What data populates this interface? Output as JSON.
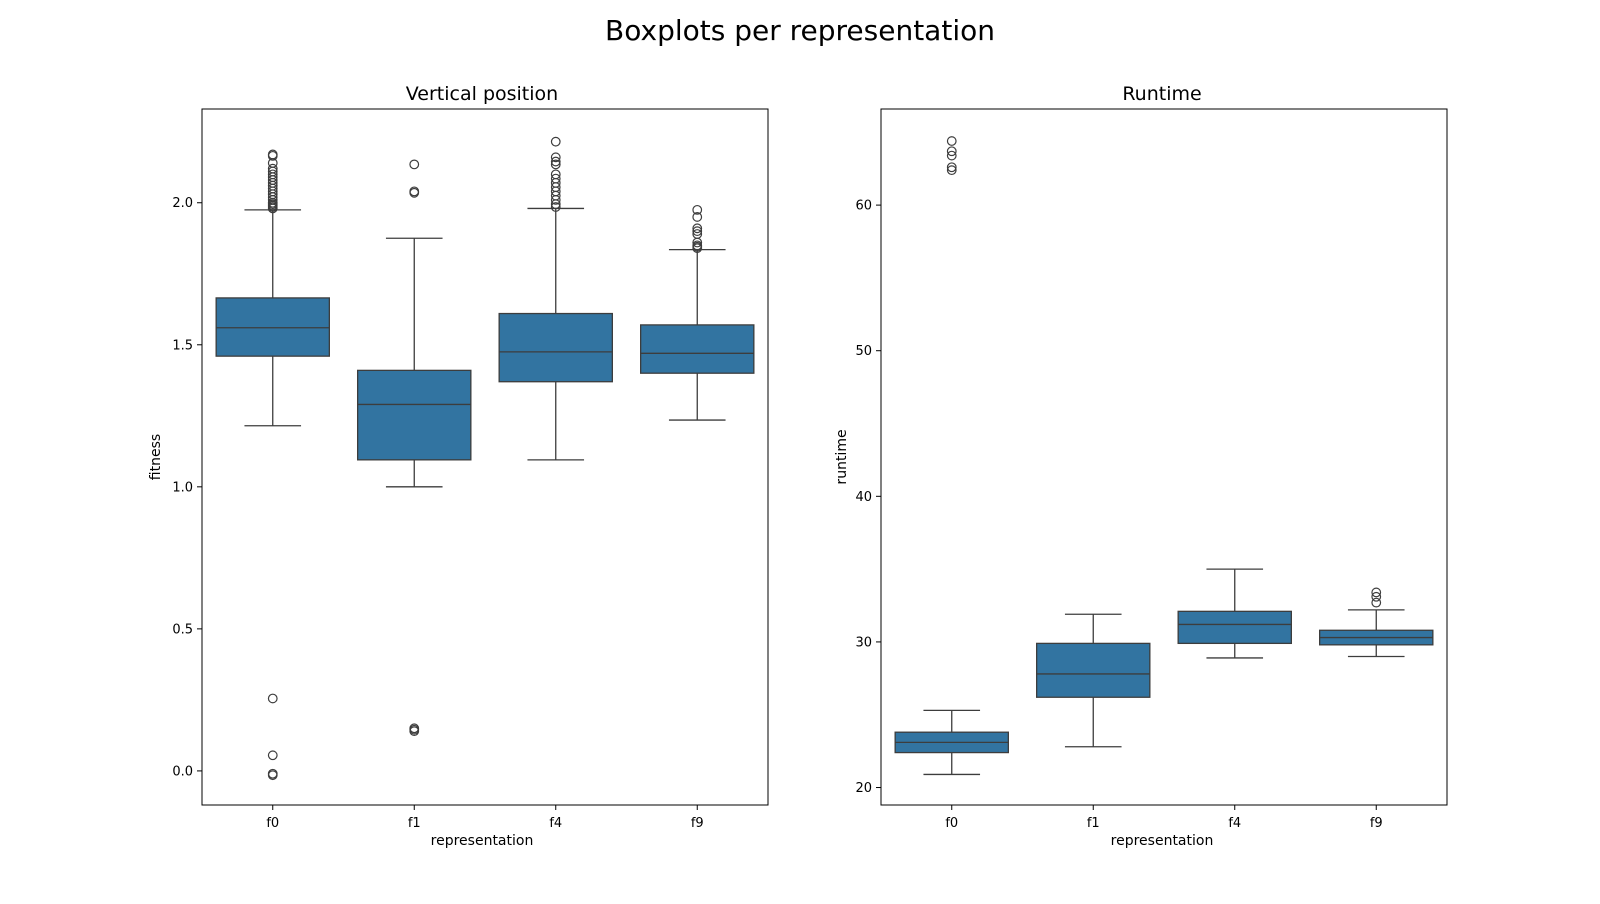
{
  "figure": {
    "suptitle": "Boxplots per representation"
  },
  "chart_data": [
    {
      "type": "boxplot",
      "title": "Vertical position",
      "xlabel": "representation",
      "ylabel": "fitness",
      "categories": [
        "f0",
        "f1",
        "f4",
        "f9"
      ],
      "ylim": [
        -0.12,
        2.33
      ],
      "yticks": [
        0.0,
        0.5,
        1.0,
        1.5,
        2.0
      ],
      "ytick_labels": [
        "0.0",
        "0.5",
        "1.0",
        "1.5",
        "2.0"
      ],
      "boxes": [
        {
          "whisker_low": 1.215,
          "q1": 1.46,
          "median": 1.56,
          "q3": 1.665,
          "whisker_high": 1.975,
          "outliers": [
            2.17,
            2.165,
            2.14,
            2.12,
            2.11,
            2.1,
            2.09,
            2.08,
            2.07,
            2.06,
            2.05,
            2.04,
            2.03,
            2.02,
            2.01,
            2.0,
            1.995,
            1.99,
            1.985,
            1.98,
            0.255,
            0.055,
            -0.01,
            -0.015
          ]
        },
        {
          "whisker_low": 1.0,
          "q1": 1.095,
          "median": 1.29,
          "q3": 1.41,
          "whisker_high": 1.875,
          "outliers": [
            2.135,
            2.04,
            2.035,
            0.15,
            0.145,
            0.14
          ]
        },
        {
          "whisker_low": 1.095,
          "q1": 1.37,
          "median": 1.475,
          "q3": 1.61,
          "whisker_high": 1.98,
          "outliers": [
            2.215,
            2.16,
            2.145,
            2.135,
            2.1,
            2.085,
            2.07,
            2.055,
            2.04,
            2.025,
            2.01,
            1.995,
            1.985
          ]
        },
        {
          "whisker_low": 1.235,
          "q1": 1.4,
          "median": 1.47,
          "q3": 1.57,
          "whisker_high": 1.835,
          "outliers": [
            1.975,
            1.95,
            1.91,
            1.9,
            1.89,
            1.86,
            1.85,
            1.845,
            1.84
          ]
        }
      ],
      "box_color": "#3274a1",
      "line_color": "#3d3d3d",
      "grid": false
    },
    {
      "type": "boxplot",
      "title": "Runtime",
      "xlabel": "representation",
      "ylabel": "runtime",
      "categories": [
        "f0",
        "f1",
        "f4",
        "f9"
      ],
      "ylim": [
        18.8,
        66.6
      ],
      "yticks": [
        20,
        30,
        40,
        50,
        60
      ],
      "ytick_labels": [
        "20",
        "30",
        "40",
        "50",
        "60"
      ],
      "boxes": [
        {
          "whisker_low": 20.9,
          "q1": 22.4,
          "median": 23.1,
          "q3": 23.8,
          "whisker_high": 25.3,
          "outliers": [
            64.4,
            63.7,
            63.4,
            62.6,
            62.4
          ]
        },
        {
          "whisker_low": 22.8,
          "q1": 26.2,
          "median": 27.8,
          "q3": 29.9,
          "whisker_high": 31.9,
          "outliers": []
        },
        {
          "whisker_low": 28.9,
          "q1": 29.9,
          "median": 31.2,
          "q3": 32.1,
          "whisker_high": 35.0,
          "outliers": []
        },
        {
          "whisker_low": 29.0,
          "q1": 29.8,
          "median": 30.3,
          "q3": 30.8,
          "whisker_high": 32.2,
          "outliers": [
            33.4,
            33.1,
            32.7
          ]
        }
      ],
      "box_color": "#3274a1",
      "line_color": "#3d3d3d",
      "grid": false
    }
  ]
}
